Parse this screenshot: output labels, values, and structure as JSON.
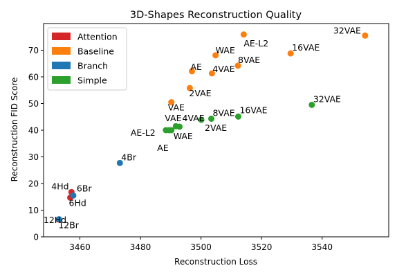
{
  "chart_data": {
    "type": "scatter",
    "title": "3D-Shapes Reconstruction Quality",
    "xlabel": "Reconstruction Loss",
    "ylabel": "Reconstruction FID Score",
    "xlim": [
      3448,
      3562
    ],
    "ylim": [
      0,
      80
    ],
    "xticks": [
      3460,
      3480,
      3500,
      3520,
      3540
    ],
    "yticks": [
      0,
      10,
      20,
      30,
      40,
      50,
      60,
      70
    ],
    "grid": false,
    "legend_position": "top-left",
    "series": [
      {
        "name": "Attention",
        "color": "#d62728",
        "points": [
          {
            "x": 3457.2,
            "y": 16.8,
            "label": "4Hd"
          },
          {
            "x": 3456.8,
            "y": 14.7,
            "label": "6Hd"
          },
          {
            "x": 3453.0,
            "y": 6.5,
            "label": "12Hd"
          }
        ]
      },
      {
        "name": "Baseline",
        "color": "#ff7f0e",
        "points": [
          {
            "x": 3490.2,
            "y": 50.5,
            "label": "VAE"
          },
          {
            "x": 3496.3,
            "y": 55.8,
            "label": "2VAE"
          },
          {
            "x": 3497.0,
            "y": 62.1,
            "label": "AE"
          },
          {
            "x": 3503.6,
            "y": 61.3,
            "label": "4VAE"
          },
          {
            "x": 3504.8,
            "y": 68.1,
            "label": "WAE"
          },
          {
            "x": 3512.2,
            "y": 64.2,
            "label": "8VAE"
          },
          {
            "x": 3514.1,
            "y": 75.9,
            "label": "AE-L2"
          },
          {
            "x": 3529.6,
            "y": 68.8,
            "label": "16VAE"
          },
          {
            "x": 3554.2,
            "y": 75.5,
            "label": "32VAE"
          }
        ]
      },
      {
        "name": "Branch",
        "color": "#1f77b4",
        "points": [
          {
            "x": 3457.8,
            "y": 15.5,
            "label": "6Br"
          },
          {
            "x": 3453.1,
            "y": 6.6,
            "label": "12Br"
          },
          {
            "x": 3473.2,
            "y": 27.7,
            "label": "4Br"
          }
        ]
      },
      {
        "name": "Simple",
        "color": "#2ca02c",
        "points": [
          {
            "x": 3488.4,
            "y": 40.0,
            "label": "AE-L2"
          },
          {
            "x": 3489.4,
            "y": 40.0,
            "label": "AE"
          },
          {
            "x": 3490.2,
            "y": 40.0,
            "label": "WAE"
          },
          {
            "x": 3491.7,
            "y": 41.5,
            "label": "VAE"
          },
          {
            "x": 3492.9,
            "y": 41.3,
            "label": "4VAE"
          },
          {
            "x": 3500.1,
            "y": 43.9,
            "label": "2VAE"
          },
          {
            "x": 3503.4,
            "y": 44.3,
            "label": "8VAE"
          },
          {
            "x": 3512.3,
            "y": 45.1,
            "label": "16VAE"
          },
          {
            "x": 3536.6,
            "y": 49.5,
            "label": "32VAE"
          }
        ]
      }
    ]
  }
}
